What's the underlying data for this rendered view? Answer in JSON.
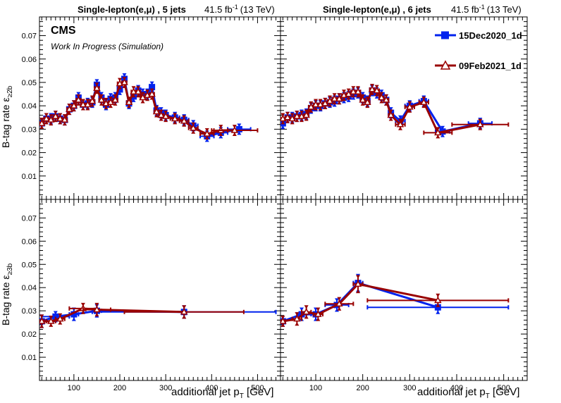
{
  "header": {
    "left_channel": "Single-lepton(e,μ) , 5 jets",
    "right_channel": "Single-lepton(e,μ) , 6 jets",
    "lumi_value": "41.5 fb",
    "lumi_exp": "-1",
    "energy": "(13 TeV)"
  },
  "labels": {
    "cms": "CMS",
    "work_in_progress": "Work In Progress (Simulation)",
    "ylabel_top_main": "B-tag rate ε",
    "ylabel_top_sub": "≥2b",
    "ylabel_bottom_main": "B-tag rate ε",
    "ylabel_bottom_sub": "≥3b",
    "xlabel_main": "additional jet p",
    "xlabel_sub": "T",
    "xlabel_unit": " [GeV]"
  },
  "legend": [
    {
      "name": "15Dec2020_1d",
      "color": "#0022ee",
      "marker": "filled-square"
    },
    {
      "name": "09Feb2021_1d",
      "color": "#990000",
      "marker": "open-triangle"
    }
  ],
  "chart_data": [
    {
      "type": "scatter",
      "panel": "top-left",
      "ylim": [
        0,
        0.078
      ],
      "yticks": [
        "0.01",
        "0.02",
        "0.03",
        "0.04",
        "0.05",
        "0.06",
        "0.07"
      ],
      "series": [
        {
          "name": "15Dec2020_1d",
          "color": "#0022ee",
          "points": [
            [
              30,
              0.0325,
              5,
              0.0015
            ],
            [
              40,
              0.0345,
              5,
              0.0015
            ],
            [
              50,
              0.0345,
              5,
              0.0015
            ],
            [
              60,
              0.0355,
              5,
              0.0015
            ],
            [
              70,
              0.0345,
              5,
              0.0015
            ],
            [
              80,
              0.034,
              5,
              0.0015
            ],
            [
              90,
              0.0385,
              5,
              0.0015
            ],
            [
              100,
              0.04,
              5,
              0.0015
            ],
            [
              110,
              0.0435,
              5,
              0.0015
            ],
            [
              120,
              0.0405,
              5,
              0.0015
            ],
            [
              130,
              0.041,
              5,
              0.0015
            ],
            [
              140,
              0.0415,
              5,
              0.0015
            ],
            [
              150,
              0.049,
              5,
              0.0015
            ],
            [
              160,
              0.0435,
              5,
              0.0015
            ],
            [
              170,
              0.0405,
              5,
              0.0015
            ],
            [
              180,
              0.043,
              5,
              0.0015
            ],
            [
              190,
              0.0435,
              5,
              0.0015
            ],
            [
              200,
              0.047,
              5,
              0.0015
            ],
            [
              210,
              0.0515,
              5,
              0.0015
            ],
            [
              220,
              0.041,
              5,
              0.0015
            ],
            [
              230,
              0.044,
              5,
              0.0015
            ],
            [
              240,
              0.0465,
              5,
              0.0015
            ],
            [
              250,
              0.045,
              5,
              0.0015
            ],
            [
              260,
              0.045,
              5,
              0.0015
            ],
            [
              270,
              0.048,
              5,
              0.0015
            ],
            [
              280,
              0.038,
              5,
              0.0015
            ],
            [
              290,
              0.037,
              5,
              0.0015
            ],
            [
              300,
              0.036,
              5,
              0.0015
            ],
            [
              320,
              0.035,
              10,
              0.0015
            ],
            [
              340,
              0.034,
              10,
              0.0015
            ],
            [
              360,
              0.0315,
              10,
              0.0015
            ],
            [
              390,
              0.027,
              15,
              0.0015
            ],
            [
              420,
              0.0285,
              15,
              0.0015
            ],
            [
              460,
              0.03,
              25,
              0.0015
            ]
          ]
        },
        {
          "name": "09Feb2021_1d",
          "color": "#990000",
          "points": [
            [
              30,
              0.0325,
              5,
              0.0015
            ],
            [
              40,
              0.0345,
              5,
              0.0015
            ],
            [
              50,
              0.034,
              5,
              0.0015
            ],
            [
              60,
              0.0355,
              5,
              0.0015
            ],
            [
              70,
              0.0345,
              5,
              0.0015
            ],
            [
              80,
              0.034,
              5,
              0.0015
            ],
            [
              90,
              0.0385,
              5,
              0.0015
            ],
            [
              100,
              0.04,
              5,
              0.0015
            ],
            [
              110,
              0.0425,
              5,
              0.0015
            ],
            [
              120,
              0.0405,
              5,
              0.0015
            ],
            [
              130,
              0.0405,
              5,
              0.0015
            ],
            [
              140,
              0.042,
              5,
              0.0015
            ],
            [
              150,
              0.0475,
              5,
              0.0015
            ],
            [
              160,
              0.0425,
              5,
              0.0015
            ],
            [
              170,
              0.041,
              5,
              0.0015
            ],
            [
              180,
              0.0415,
              5,
              0.0015
            ],
            [
              190,
              0.0425,
              5,
              0.0015
            ],
            [
              200,
              0.0495,
              5,
              0.0015
            ],
            [
              210,
              0.05,
              5,
              0.0015
            ],
            [
              220,
              0.0415,
              5,
              0.0015
            ],
            [
              230,
              0.046,
              5,
              0.0015
            ],
            [
              240,
              0.046,
              5,
              0.0015
            ],
            [
              250,
              0.0435,
              5,
              0.0015
            ],
            [
              260,
              0.0445,
              5,
              0.0015
            ],
            [
              270,
              0.045,
              5,
              0.0015
            ],
            [
              280,
              0.0375,
              5,
              0.0015
            ],
            [
              290,
              0.036,
              5,
              0.0015
            ],
            [
              300,
              0.0355,
              5,
              0.0015
            ],
            [
              320,
              0.0345,
              10,
              0.0015
            ],
            [
              340,
              0.0335,
              10,
              0.0015
            ],
            [
              360,
              0.0305,
              10,
              0.0015
            ],
            [
              390,
              0.028,
              15,
              0.0015
            ],
            [
              420,
              0.0295,
              15,
              0.0015
            ],
            [
              450,
              0.0295,
              50,
              0.0015
            ]
          ]
        }
      ]
    },
    {
      "type": "scatter",
      "panel": "top-right",
      "ylim": [
        0,
        0.078
      ],
      "series": [
        {
          "name": "15Dec2020_1d",
          "color": "#0022ee",
          "points": [
            [
              30,
              0.0325,
              5,
              0.0015
            ],
            [
              40,
              0.035,
              5,
              0.0015
            ],
            [
              50,
              0.035,
              5,
              0.0015
            ],
            [
              60,
              0.0355,
              5,
              0.0015
            ],
            [
              70,
              0.036,
              5,
              0.0015
            ],
            [
              80,
              0.0365,
              5,
              0.0015
            ],
            [
              90,
              0.039,
              5,
              0.0015
            ],
            [
              100,
              0.04,
              5,
              0.0015
            ],
            [
              110,
              0.04,
              5,
              0.0015
            ],
            [
              120,
              0.041,
              5,
              0.0015
            ],
            [
              130,
              0.0415,
              5,
              0.0015
            ],
            [
              140,
              0.042,
              5,
              0.0015
            ],
            [
              150,
              0.043,
              5,
              0.0015
            ],
            [
              160,
              0.0435,
              5,
              0.0015
            ],
            [
              170,
              0.044,
              5,
              0.0015
            ],
            [
              180,
              0.045,
              5,
              0.0015
            ],
            [
              190,
              0.0455,
              5,
              0.0015
            ],
            [
              200,
              0.0435,
              5,
              0.0015
            ],
            [
              210,
              0.042,
              5,
              0.0015
            ],
            [
              220,
              0.0465,
              5,
              0.0015
            ],
            [
              230,
              0.0455,
              5,
              0.0015
            ],
            [
              240,
              0.0445,
              5,
              0.0015
            ],
            [
              250,
              0.0425,
              5,
              0.0015
            ],
            [
              260,
              0.037,
              5,
              0.0015
            ],
            [
              280,
              0.0335,
              10,
              0.0015
            ],
            [
              300,
              0.04,
              10,
              0.0015
            ],
            [
              330,
              0.042,
              10,
              0.0015
            ],
            [
              370,
              0.029,
              15,
              0.0015
            ],
            [
              450,
              0.0325,
              25,
              0.0015
            ]
          ]
        },
        {
          "name": "09Feb2021_1d",
          "color": "#990000",
          "points": [
            [
              30,
              0.0345,
              5,
              0.0015
            ],
            [
              40,
              0.035,
              5,
              0.0015
            ],
            [
              50,
              0.0345,
              5,
              0.0015
            ],
            [
              60,
              0.0355,
              5,
              0.0015
            ],
            [
              70,
              0.0355,
              5,
              0.0015
            ],
            [
              80,
              0.036,
              5,
              0.0015
            ],
            [
              90,
              0.0395,
              5,
              0.0015
            ],
            [
              100,
              0.0405,
              5,
              0.0015
            ],
            [
              110,
              0.0405,
              5,
              0.0015
            ],
            [
              120,
              0.041,
              5,
              0.0015
            ],
            [
              130,
              0.042,
              5,
              0.0015
            ],
            [
              140,
              0.043,
              5,
              0.0015
            ],
            [
              150,
              0.043,
              5,
              0.0015
            ],
            [
              160,
              0.0445,
              5,
              0.0015
            ],
            [
              170,
              0.045,
              5,
              0.0015
            ],
            [
              180,
              0.046,
              5,
              0.0015
            ],
            [
              190,
              0.046,
              5,
              0.0015
            ],
            [
              200,
              0.0425,
              5,
              0.0015
            ],
            [
              210,
              0.0415,
              5,
              0.0015
            ],
            [
              220,
              0.047,
              5,
              0.0015
            ],
            [
              230,
              0.0465,
              5,
              0.0015
            ],
            [
              240,
              0.0435,
              5,
              0.0015
            ],
            [
              250,
              0.0425,
              5,
              0.0015
            ],
            [
              260,
              0.036,
              5,
              0.0015
            ],
            [
              280,
              0.032,
              10,
              0.0015
            ],
            [
              300,
              0.0395,
              10,
              0.0015
            ],
            [
              330,
              0.0415,
              10,
              0.0015
            ],
            [
              360,
              0.0285,
              30,
              0.0015
            ],
            [
              450,
              0.032,
              60,
              0.0015
            ]
          ]
        }
      ]
    },
    {
      "type": "scatter",
      "panel": "bottom-left",
      "ylim": [
        0,
        0.078
      ],
      "yticks": [
        "0.01",
        "0.02",
        "0.03",
        "0.04",
        "0.05",
        "0.06",
        "0.07"
      ],
      "xlim": [
        25,
        550
      ],
      "xticks": [
        "100",
        "200",
        "300",
        "400",
        "500"
      ],
      "series": [
        {
          "name": "15Dec2020_1d",
          "color": "#0022ee",
          "points": [
            [
              30,
              0.0255,
              5,
              0.002
            ],
            [
              60,
              0.0275,
              30,
              0.0015
            ],
            [
              100,
              0.0285,
              10,
              0.002
            ],
            [
              150,
              0.03,
              10,
              0.002
            ],
            [
              340,
              0.0295,
              200,
              0.002
            ]
          ]
        },
        {
          "name": "09Feb2021_1d",
          "color": "#990000",
          "points": [
            [
              30,
              0.0255,
              5,
              0.002
            ],
            [
              50,
              0.0255,
              10,
              0.0015
            ],
            [
              70,
              0.0265,
              10,
              0.0015
            ],
            [
              120,
              0.031,
              30,
              0.0015
            ],
            [
              150,
              0.0305,
              30,
              0.002
            ],
            [
              340,
              0.0295,
              130,
              0.002
            ]
          ]
        }
      ]
    },
    {
      "type": "scatter",
      "panel": "bottom-right",
      "ylim": [
        0,
        0.078
      ],
      "xlim": [
        25,
        550
      ],
      "xticks": [
        "100",
        "200",
        "300",
        "400",
        "500"
      ],
      "series": [
        {
          "name": "15Dec2020_1d",
          "color": "#0022ee",
          "points": [
            [
              30,
              0.0255,
              5,
              0.0015
            ],
            [
              70,
              0.0285,
              10,
              0.002
            ],
            [
              100,
              0.0285,
              10,
              0.002
            ],
            [
              145,
              0.0325,
              25,
              0.002
            ],
            [
              190,
              0.042,
              10,
              0.003
            ],
            [
              360,
              0.0315,
              150,
              0.002
            ]
          ]
        },
        {
          "name": "09Feb2021_1d",
          "color": "#990000",
          "points": [
            [
              30,
              0.0255,
              5,
              0.0015
            ],
            [
              60,
              0.0265,
              10,
              0.002
            ],
            [
              80,
              0.0295,
              10,
              0.002
            ],
            [
              105,
              0.0285,
              10,
              0.002
            ],
            [
              150,
              0.033,
              30,
              0.002
            ],
            [
              190,
              0.0415,
              10,
              0.003
            ],
            [
              360,
              0.0345,
              150,
              0.002
            ]
          ]
        }
      ]
    }
  ]
}
